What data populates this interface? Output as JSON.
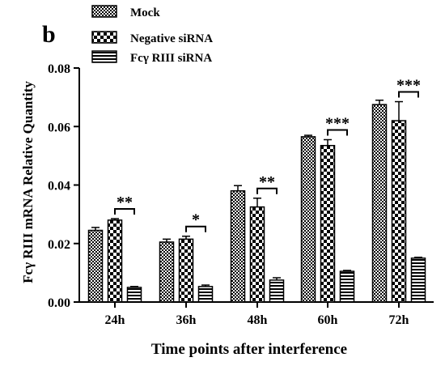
{
  "chart_data": {
    "type": "bar",
    "panel_label": "b",
    "title": "",
    "xlabel": "Time points after interference",
    "ylabel": "Fcγ RIII mRNA Relative Quantity",
    "ylim": [
      0,
      0.08
    ],
    "yticks": [
      "0.00",
      "0.02",
      "0.04",
      "0.06",
      "0.08"
    ],
    "categories": [
      "24h",
      "36h",
      "48h",
      "60h",
      "72h"
    ],
    "legend_position": "top-left",
    "series": [
      {
        "name": "Mock",
        "pattern": "checker-fine",
        "values": [
          0.0245,
          0.0205,
          0.038,
          0.0565,
          0.0675
        ],
        "errors": [
          0.001,
          0.001,
          0.0018,
          0.0005,
          0.0015
        ]
      },
      {
        "name": "Negative siRNA",
        "pattern": "checker-coarse",
        "values": [
          0.028,
          0.0215,
          0.0325,
          0.0535,
          0.062
        ],
        "errors": [
          0.0005,
          0.001,
          0.003,
          0.002,
          0.0065
        ]
      },
      {
        "name": "Fcγ RIII siRNA",
        "pattern": "horizontal-stripes",
        "values": [
          0.005,
          0.0053,
          0.0075,
          0.0105,
          0.015
        ],
        "errors": [
          0.0003,
          0.0005,
          0.0008,
          0.0003,
          0.0003
        ]
      }
    ],
    "significance": [
      "**",
      "*",
      "**",
      "***",
      "***"
    ],
    "grid": false
  }
}
